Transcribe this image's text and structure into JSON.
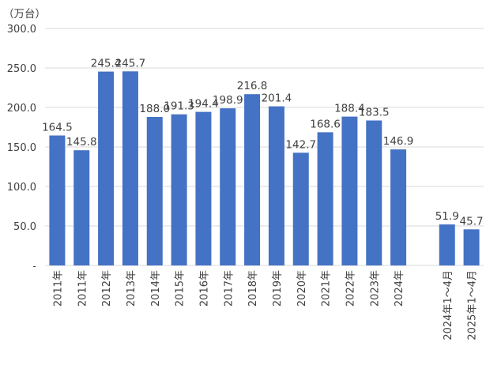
{
  "chart_data": {
    "type": "bar",
    "unit_label": "（万台）",
    "categories": [
      "2011年",
      "2011年",
      "2012年",
      "2013年",
      "2014年",
      "2015年",
      "2016年",
      "2017年",
      "2018年",
      "2019年",
      "2020年",
      "2021年",
      "2022年",
      "2023年",
      "2024年",
      "",
      "2024年1～4月",
      "2025年1～4月"
    ],
    "values": [
      164.5,
      145.8,
      245.4,
      245.7,
      188.0,
      191.3,
      194.4,
      198.9,
      216.8,
      201.4,
      142.7,
      168.6,
      188.4,
      183.5,
      146.9,
      null,
      51.9,
      45.7
    ],
    "value_labels": [
      "164.5",
      "145.8",
      "245.4",
      "245.7",
      "188.0",
      "191.3",
      "194.4",
      "198.9",
      "216.8",
      "201.4",
      "142.7",
      "168.6",
      "188.4",
      "183.5",
      "146.9",
      "",
      "51.9",
      "45.7"
    ],
    "y_ticks": [
      "-",
      "50.0",
      "100.0",
      "150.0",
      "200.0",
      "250.0",
      "300.0"
    ],
    "ylim": [
      0,
      300
    ],
    "grid": true,
    "legend": "none",
    "bar_color": "#4472C4",
    "grid_color": "#D9D9D9",
    "text_color": "#404040"
  }
}
